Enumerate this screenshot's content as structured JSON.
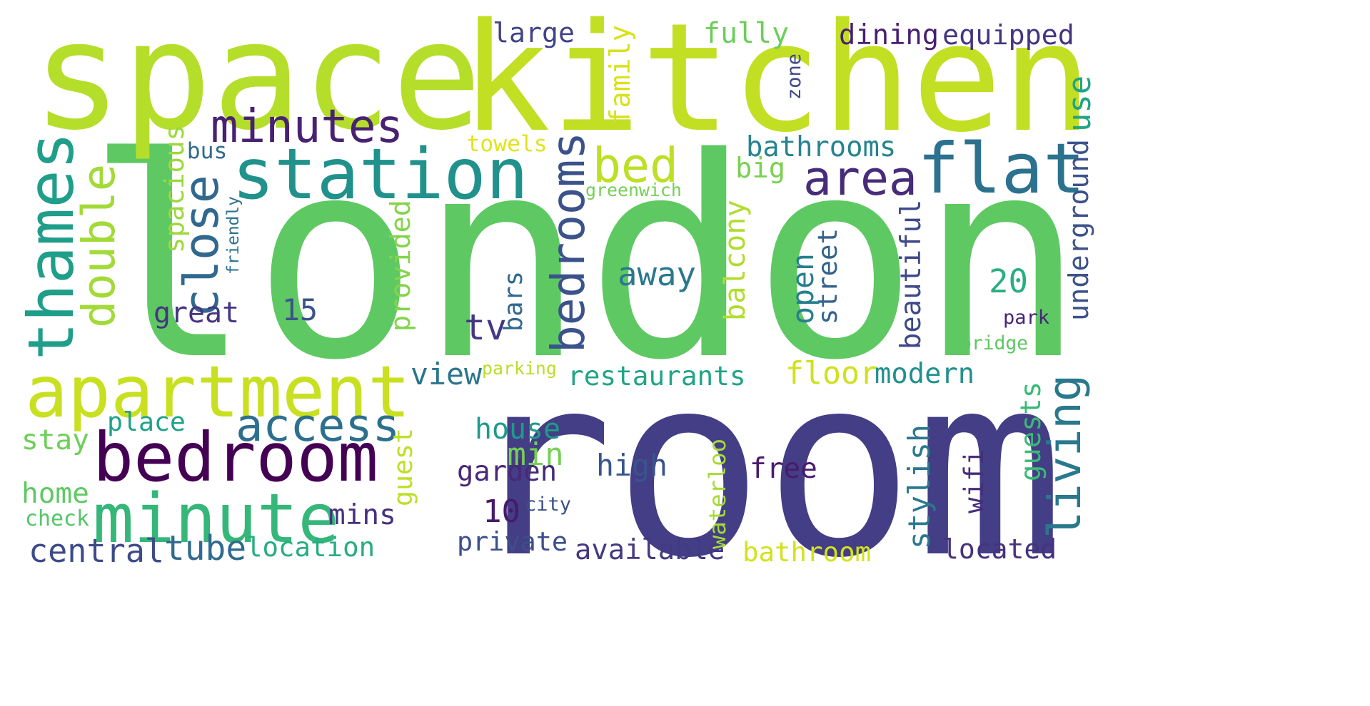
{
  "words": [
    {
      "text": "london",
      "color": "#5ec962",
      "rotated": false
    },
    {
      "text": "room",
      "color": "#433e85",
      "rotated": false
    },
    {
      "text": "kitchen",
      "color": "#c2df23",
      "rotated": false
    },
    {
      "text": "space",
      "color": "#b5de2b",
      "rotated": false
    },
    {
      "text": "apartment",
      "color": "#c8e020",
      "rotated": false
    },
    {
      "text": "bedroom",
      "color": "#440154",
      "rotated": false
    },
    {
      "text": "minute",
      "color": "#35b779",
      "rotated": false
    },
    {
      "text": "station",
      "color": "#21918c",
      "rotated": false
    },
    {
      "text": "flat",
      "color": "#2c728e",
      "rotated": false
    },
    {
      "text": "thames",
      "color": "#1f9e89",
      "rotated": true
    },
    {
      "text": "minutes",
      "color": "#482173",
      "rotated": false
    },
    {
      "text": "area",
      "color": "#472c7a",
      "rotated": false
    },
    {
      "text": "bed",
      "color": "#bddf26",
      "rotated": false
    },
    {
      "text": "access",
      "color": "#2d708e",
      "rotated": false
    },
    {
      "text": "double",
      "color": "#a2da37",
      "rotated": true
    },
    {
      "text": "close",
      "color": "#31688e",
      "rotated": true
    },
    {
      "text": "bedrooms",
      "color": "#3b528b",
      "rotated": true
    },
    {
      "text": "living",
      "color": "#2a788e",
      "rotated": true
    },
    {
      "text": "restaurants",
      "color": "#20a486",
      "rotated": false
    },
    {
      "text": "available",
      "color": "#443983",
      "rotated": false
    },
    {
      "text": "location",
      "color": "#26ad81",
      "rotated": false
    },
    {
      "text": "central",
      "color": "#3e4a89",
      "rotated": false
    },
    {
      "text": "bathroom",
      "color": "#d2e21b",
      "rotated": false
    },
    {
      "text": "located",
      "color": "#46327e",
      "rotated": false
    },
    {
      "text": "equipped",
      "color": "#453581",
      "rotated": false
    },
    {
      "text": "dining",
      "color": "#481f70",
      "rotated": false
    },
    {
      "text": "fully",
      "color": "#6ccd5a",
      "rotated": false
    },
    {
      "text": "large",
      "color": "#414487",
      "rotated": false
    },
    {
      "text": "family",
      "color": "#d8e219",
      "rotated": true
    },
    {
      "text": "bathrooms",
      "color": "#25848e",
      "rotated": false
    },
    {
      "text": "big",
      "color": "#7ad151",
      "rotated": false
    },
    {
      "text": "use",
      "color": "#20a386",
      "rotated": true
    },
    {
      "text": "underground",
      "color": "#3b528b",
      "rotated": true
    },
    {
      "text": "spacious",
      "color": "#9bd93c",
      "rotated": true
    },
    {
      "text": "provided",
      "color": "#84d44b",
      "rotated": true
    },
    {
      "text": "balcony",
      "color": "#b0dd2f",
      "rotated": true
    },
    {
      "text": "street",
      "color": "#33638d",
      "rotated": true
    },
    {
      "text": "open",
      "color": "#277f8e",
      "rotated": true
    },
    {
      "text": "beautiful",
      "color": "#3e4989",
      "rotated": true
    },
    {
      "text": "away",
      "color": "#2a788e",
      "rotated": false
    },
    {
      "text": "20",
      "color": "#29af7f",
      "rotated": false
    },
    {
      "text": "park",
      "color": "#482475",
      "rotated": false
    },
    {
      "text": "great",
      "color": "#463480",
      "rotated": false
    },
    {
      "text": "15",
      "color": "#3b528b",
      "rotated": false
    },
    {
      "text": "tv",
      "color": "#453882",
      "rotated": false
    },
    {
      "text": "bars",
      "color": "#31688e",
      "rotated": true
    },
    {
      "text": "view",
      "color": "#2b758e",
      "rotated": false
    },
    {
      "text": "floor",
      "color": "#d0e11c",
      "rotated": false
    },
    {
      "text": "modern",
      "color": "#21908d",
      "rotated": false
    },
    {
      "text": "place",
      "color": "#1fa188",
      "rotated": false
    },
    {
      "text": "house",
      "color": "#1f9a8a",
      "rotated": false
    },
    {
      "text": "guests",
      "color": "#3aba76",
      "rotated": true
    },
    {
      "text": "stay",
      "color": "#6ece58",
      "rotated": false
    },
    {
      "text": "guest",
      "color": "#bddf26",
      "rotated": true
    },
    {
      "text": "min",
      "color": "#75d054",
      "rotated": false
    },
    {
      "text": "high",
      "color": "#39558c",
      "rotated": false
    },
    {
      "text": "garden",
      "color": "#482878",
      "rotated": false
    },
    {
      "text": "free",
      "color": "#481b6d",
      "rotated": false
    },
    {
      "text": "waterloo",
      "color": "#a5db36",
      "rotated": true
    },
    {
      "text": "stylish",
      "color": "#2a788e",
      "rotated": true
    },
    {
      "text": "wifi",
      "color": "#472d7b",
      "rotated": true
    },
    {
      "text": "home",
      "color": "#5ec962",
      "rotated": false
    },
    {
      "text": "mins",
      "color": "#46307e",
      "rotated": false
    },
    {
      "text": "10",
      "color": "#481a6c",
      "rotated": false
    },
    {
      "text": "tube",
      "color": "#306a8e",
      "rotated": false
    },
    {
      "text": "private",
      "color": "#3c4f8a",
      "rotated": false
    },
    {
      "text": "towels",
      "color": "#e1e418",
      "rotated": false
    },
    {
      "text": "bus",
      "color": "#306a8e",
      "rotated": false
    },
    {
      "text": "greenwich",
      "color": "#75d054",
      "rotated": false
    },
    {
      "text": "zone",
      "color": "#3e4989",
      "rotated": true
    },
    {
      "text": "friendly",
      "color": "#2d708e",
      "rotated": true
    },
    {
      "text": "parking",
      "color": "#b8de29",
      "rotated": false
    },
    {
      "text": "bridge",
      "color": "#5cc863",
      "rotated": false
    },
    {
      "text": "check",
      "color": "#54c568",
      "rotated": false
    },
    {
      "text": "city",
      "color": "#3d4e8a",
      "rotated": false
    }
  ]
}
